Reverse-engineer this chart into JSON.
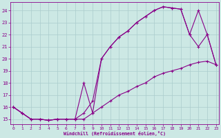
{
  "xlabel": "Windchill (Refroidissement éolien,°C)",
  "bg_color": "#cce8e4",
  "grid_color": "#aacccc",
  "line_color": "#880088",
  "line1_x": [
    0,
    1,
    2,
    3,
    4,
    5,
    6,
    7,
    8,
    9,
    10,
    11,
    12,
    13,
    14,
    15,
    16,
    17,
    18,
    19,
    20,
    21,
    22,
    23
  ],
  "line1_y": [
    16.0,
    15.5,
    15.0,
    15.0,
    14.9,
    15.0,
    15.0,
    15.0,
    15.0,
    15.5,
    16.0,
    16.5,
    17.0,
    17.3,
    17.7,
    18.0,
    18.5,
    18.8,
    19.0,
    19.2,
    19.5,
    19.7,
    19.8,
    19.5
  ],
  "line2_x": [
    0,
    1,
    2,
    3,
    4,
    5,
    6,
    7,
    8,
    9,
    10,
    11,
    12,
    13,
    14,
    15,
    16,
    17,
    18,
    19,
    20,
    21,
    22,
    23
  ],
  "line2_y": [
    16.0,
    15.5,
    15.0,
    15.0,
    14.9,
    15.0,
    15.0,
    15.0,
    18.0,
    15.5,
    20.0,
    21.0,
    21.8,
    22.3,
    23.0,
    23.5,
    24.0,
    24.3,
    24.2,
    24.1,
    22.0,
    21.0,
    22.0,
    19.5
  ],
  "line3_x": [
    0,
    1,
    2,
    3,
    4,
    5,
    6,
    7,
    8,
    9,
    10,
    11,
    12,
    13,
    14,
    15,
    16,
    17,
    18,
    19,
    20,
    21,
    22,
    23
  ],
  "line3_y": [
    16.0,
    15.5,
    15.0,
    15.0,
    14.9,
    15.0,
    15.0,
    15.0,
    15.5,
    16.5,
    20.0,
    21.0,
    21.8,
    22.3,
    23.0,
    23.5,
    24.0,
    24.3,
    24.2,
    24.1,
    22.0,
    24.0,
    22.0,
    19.5
  ]
}
